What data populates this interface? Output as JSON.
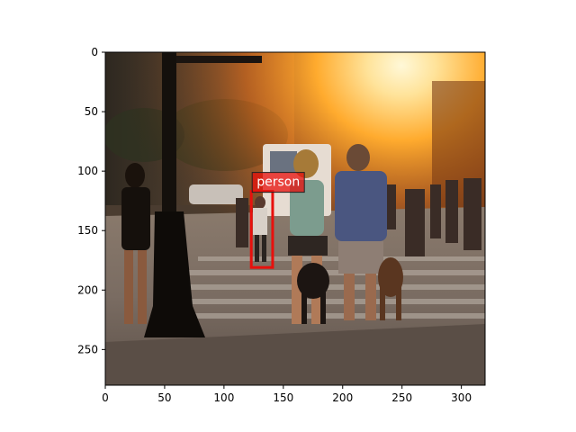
{
  "image": {
    "description_colors": {
      "sun": "#ffe9a8",
      "sky_glow": "#ff9a1a",
      "street": "#6e625a",
      "shadow": "#1e1712"
    }
  },
  "axes": {
    "xlim": [
      0,
      320
    ],
    "ylim": [
      280,
      0
    ],
    "xticks": [
      0,
      50,
      100,
      150,
      200,
      250,
      300
    ],
    "yticks": [
      0,
      50,
      100,
      150,
      200,
      250
    ]
  },
  "detections": [
    {
      "label": "person",
      "box": {
        "x0": 123,
        "y0": 117,
        "x1": 141,
        "y1": 181
      },
      "color": "#e8100c"
    }
  ]
}
